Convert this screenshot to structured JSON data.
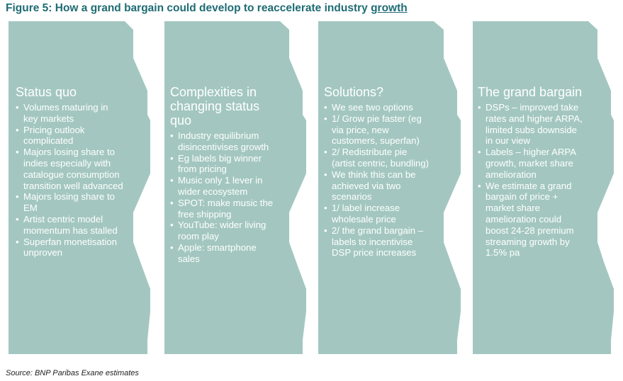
{
  "title": {
    "main": "Figure 5: How a grand bargain could develop to reaccelerate industry ",
    "underlined": "growth"
  },
  "colors": {
    "chevron_fill": "#a3c7c0",
    "title": "#1f6c74",
    "text": "#ffffff"
  },
  "panels": [
    {
      "heading": [
        "Status quo"
      ],
      "bullets": [
        [
          "Volumes maturing in",
          "key markets"
        ],
        [
          "Pricing outlook",
          "complicated"
        ],
        [
          "Majors losing share to",
          "indies especially with",
          "catalogue consumption",
          "transition well advanced"
        ],
        [
          "Majors losing share to",
          "EM"
        ],
        [
          "Artist centric model",
          "momentum has stalled"
        ],
        [
          "Superfan monetisation",
          "unproven"
        ]
      ]
    },
    {
      "heading": [
        "Complexities in",
        "changing status",
        "quo"
      ],
      "bullets": [
        [
          "Industry equilibrium",
          "disincentivises growth"
        ],
        [
          "Eg labels big winner",
          "from pricing"
        ],
        [
          " Music only 1 lever in",
          "wider ecosystem"
        ],
        [
          "SPOT: make music the",
          "free shipping"
        ],
        [
          "YouTube: wider living",
          "room play"
        ],
        [
          "Apple: smartphone",
          "sales"
        ]
      ]
    },
    {
      "heading": [
        "Solutions?"
      ],
      "bullets": [
        [
          "We see two options"
        ],
        [
          "1/ Grow pie faster (eg",
          "via price, new",
          "customers, superfan)"
        ],
        [
          "2/ Redistribute pie",
          "(artist centric, bundling)"
        ],
        [
          "We think this can be",
          "achieved via two",
          "scenarios"
        ],
        [
          "1/ label increase",
          "wholesale price"
        ],
        [
          "2/ the grand bargain –",
          "labels to incentivise",
          "DSP price increases"
        ]
      ]
    },
    {
      "heading": [
        "The grand bargain"
      ],
      "bullets": [
        [
          "DSPs – improved take",
          "rates and higher ARPA,",
          "limited subs downside",
          "in our view"
        ],
        [
          "Labels – higher ARPA",
          "growth, market share",
          "amelioration"
        ],
        [
          "We estimate a grand",
          "bargain of price +",
          "market share",
          "amelioration could",
          "boost 24-28 premium",
          "streaming growth  by",
          "1.5% pa"
        ]
      ]
    }
  ],
  "source": "Source:  BNP Paribas Exane estimates"
}
